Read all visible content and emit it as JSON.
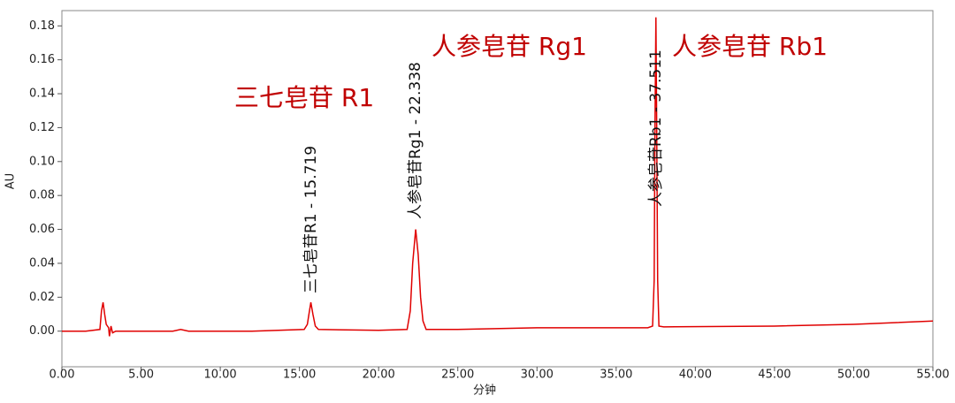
{
  "chart_data": {
    "type": "line",
    "x_label": "分钟",
    "y_label": "AU",
    "color": "#e00000",
    "x": [
      0,
      1.5,
      2.4,
      2.5,
      2.6,
      2.7,
      2.8,
      2.95,
      3.0,
      3.1,
      3.2,
      3.4,
      7.0,
      7.5,
      8.0,
      12.0,
      15.3,
      15.5,
      15.6,
      15.72,
      15.85,
      16.0,
      16.2,
      20.0,
      21.8,
      22.0,
      22.15,
      22.34,
      22.5,
      22.65,
      22.8,
      23.0,
      25.0,
      30.0,
      37.0,
      37.3,
      37.4,
      37.45,
      37.51,
      37.56,
      37.62,
      37.7,
      38.0,
      45.0,
      50.0,
      55.0
    ],
    "values": [
      0,
      0,
      0.001,
      0.012,
      0.017,
      0.01,
      0.004,
      0.002,
      -0.003,
      0.003,
      -0.001,
      0,
      0,
      0.001,
      0,
      0,
      0.001,
      0.004,
      0.01,
      0.017,
      0.01,
      0.003,
      0.001,
      0.0005,
      0.001,
      0.012,
      0.04,
      0.06,
      0.045,
      0.02,
      0.006,
      0.001,
      0.001,
      0.002,
      0.002,
      0.003,
      0.03,
      0.12,
      0.185,
      0.12,
      0.03,
      0.003,
      0.0025,
      0.003,
      0.004,
      0.006
    ],
    "xlim": [
      0,
      55
    ],
    "ylim": [
      -0.021,
      0.189
    ],
    "xticks": [
      {
        "value": 0,
        "label": "0.00"
      },
      {
        "value": 5,
        "label": "5.00"
      },
      {
        "value": 10,
        "label": "10.00"
      },
      {
        "value": 15,
        "label": "15.00"
      },
      {
        "value": 20,
        "label": "20.00"
      },
      {
        "value": 25,
        "label": "25.00"
      },
      {
        "value": 30,
        "label": "30.00"
      },
      {
        "value": 35,
        "label": "35.00"
      },
      {
        "value": 40,
        "label": "40.00"
      },
      {
        "value": 45,
        "label": "45.00"
      },
      {
        "value": 50,
        "label": "50.00"
      },
      {
        "value": 55,
        "label": "55.00"
      }
    ],
    "yticks": [
      {
        "value": 0,
        "label": "0.00"
      },
      {
        "value": 0.02,
        "label": "0.02"
      },
      {
        "value": 0.04,
        "label": "0.04"
      },
      {
        "value": 0.06,
        "label": "0.06"
      },
      {
        "value": 0.08,
        "label": "0.08"
      },
      {
        "value": 0.1,
        "label": "0.10"
      },
      {
        "value": 0.12,
        "label": "0.12"
      },
      {
        "value": 0.14,
        "label": "0.14"
      },
      {
        "value": 0.16,
        "label": "0.16"
      },
      {
        "value": 0.18,
        "label": "0.18"
      }
    ],
    "peak_labels": [
      "三七皂苷R1 - 15.719",
      "人参皂苷Rg1 - 22.338",
      "人参皂苷Rb1 - 37.511"
    ],
    "annotations": [
      "三七皂苷 R1",
      "人参皂苷 Rg1",
      "人参皂苷 Rb1"
    ]
  }
}
